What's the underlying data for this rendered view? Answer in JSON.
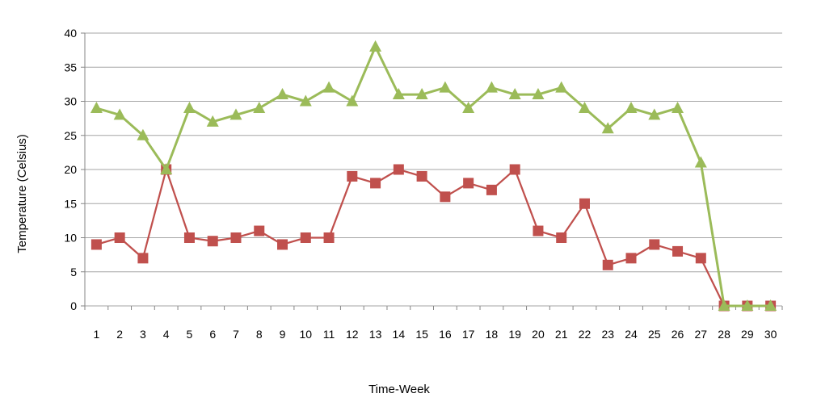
{
  "chart_data": {
    "type": "line",
    "title": "",
    "xlabel": "Time-Week",
    "ylabel": "Temperature (Celsius)",
    "ylim": [
      0,
      40
    ],
    "yticks": [
      0,
      5,
      10,
      15,
      20,
      25,
      30,
      35,
      40
    ],
    "grid": true,
    "legend": "none",
    "x": [
      1,
      2,
      3,
      4,
      5,
      6,
      7,
      8,
      9,
      10,
      11,
      12,
      13,
      14,
      15,
      16,
      17,
      18,
      19,
      20,
      21,
      22,
      23,
      24,
      25,
      26,
      27,
      28,
      29,
      30
    ],
    "series": [
      {
        "color": "#C0504D",
        "marker": "square",
        "values": [
          9,
          10,
          7,
          20,
          10,
          9.5,
          10,
          11,
          9,
          10,
          10,
          19,
          18,
          20,
          19,
          16,
          18,
          17,
          20,
          11,
          10,
          15,
          6,
          7,
          9,
          8,
          7,
          0,
          0,
          0
        ]
      },
      {
        "color": "#9BBB59",
        "marker": "triangle",
        "values": [
          29,
          28,
          25,
          20,
          29,
          27,
          28,
          29,
          31,
          30,
          32,
          30,
          38,
          31,
          31,
          32,
          29,
          32,
          31,
          31,
          32,
          29,
          26,
          29,
          28,
          29,
          21,
          0,
          0,
          0
        ]
      }
    ]
  }
}
